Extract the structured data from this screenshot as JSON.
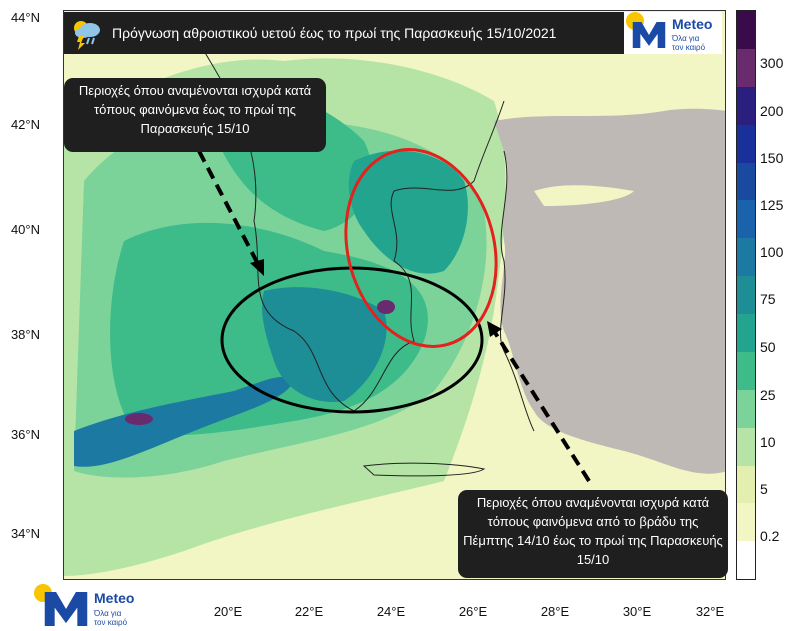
{
  "map": {
    "title": "Πρόγνωση αθροιστικού υετού έως το πρωί της Παρασκευής 15/10/2021",
    "lat_labels": [
      "44°N",
      "42°N",
      "40°N",
      "38°N",
      "36°N",
      "34°N"
    ],
    "lon_labels": [
      "20°E",
      "22°E",
      "24°E",
      "26°E",
      "28°E",
      "30°E",
      "32°E"
    ],
    "callout_west": "Περιοχές όπου αναμένονται ισχυρά κατά τόπους φαινόμενα έως το πρωί της Παρασκευής 15/10",
    "callout_east": "Περιοχές όπου αναμένονται ισχυρά κατά τόπους φαινόμενα  από το βράδυ της Πέμπτης 14/10 έως το πρωί της Παρασκευής 15/10",
    "ellipse_west_color": "#000000",
    "ellipse_east_color": "#e3221e",
    "weather_icon": "rain-cloud-lightning-icon"
  },
  "brand": {
    "name": "Meteo",
    "slogan_line1": "Όλα για",
    "slogan_line2": "τον καιρό",
    "sun_color": "#f7c600",
    "m_color": "#1a4aa5"
  },
  "colorbar": {
    "labels": [
      "300",
      "200",
      "150",
      "125",
      "100",
      "75",
      "50",
      "25",
      "10",
      "5",
      "0.2"
    ],
    "colors": [
      "#ffffff",
      "#f2f5c4",
      "#e3efae",
      "#b6e4a6",
      "#7bd39a",
      "#3dbc8a",
      "#23a48f",
      "#1d8e96",
      "#1c79a2",
      "#1a62ab",
      "#1a4aa0",
      "#19309a",
      "#2a1f7e",
      "#6a2a6e",
      "#3a0b4a"
    ]
  }
}
